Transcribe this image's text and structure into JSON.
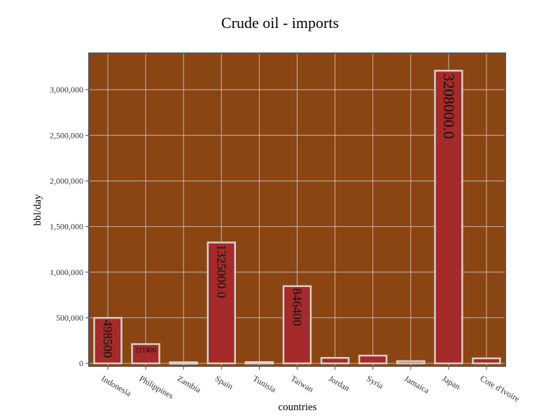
{
  "chart_data": {
    "type": "bar",
    "title": "Crude oil - imports",
    "xlabel": "countries",
    "ylabel": "bbl/day",
    "categories": [
      "Indonesia",
      "Philippines",
      "Zambia",
      "Spain",
      "Tunisia",
      "Taiwan",
      "Jordan",
      "Syria",
      "Jamaica",
      "Japan",
      "Cote d'Ivoire"
    ],
    "values": [
      498500,
      211400,
      12000,
      1325000,
      14000,
      846400,
      60000,
      85000,
      24000,
      3208000,
      55000
    ],
    "data_labels": [
      "498500",
      "211400",
      "",
      "1325000.0",
      "",
      "846400",
      "",
      "",
      "",
      "3208000.0",
      ""
    ],
    "yticks": [
      0,
      500000,
      1000000,
      1500000,
      2000000,
      2500000,
      3000000
    ],
    "ytick_labels": [
      "0",
      "500,000",
      "1,000,000",
      "1,500,000",
      "2,000,000",
      "2,500,000",
      "3,000,000"
    ],
    "ylim": [
      -30000,
      3400000
    ],
    "grid": true,
    "colors": {
      "plot_bg": "#8B4513",
      "bar_fill": "#A52A2A",
      "bar_edge": "#D3D3D3",
      "grid": "#D3D3D3",
      "frame": "#555555"
    }
  }
}
